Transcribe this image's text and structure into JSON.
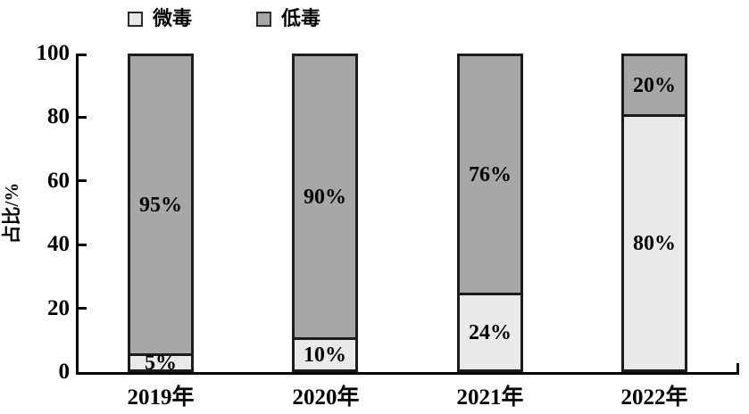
{
  "chart_data": {
    "type": "bar",
    "stacked": true,
    "title": "",
    "categories": [
      "2019年",
      "2020年",
      "2021年",
      "2022年"
    ],
    "series": [
      {
        "name": "微毒",
        "color": "#e9e9e9",
        "values": [
          5,
          10,
          24,
          80
        ],
        "labels": [
          "5%",
          "10%",
          "24%",
          "80%"
        ]
      },
      {
        "name": "低毒",
        "color": "#a7a7a7",
        "values": [
          95,
          90,
          76,
          20
        ],
        "labels": [
          "95%",
          "90%",
          "76%",
          "20%"
        ]
      }
    ],
    "xlabel": "",
    "ylabel": "占比/%",
    "ylim": [
      0,
      100
    ],
    "yticks": [
      "0",
      "20",
      "40",
      "60",
      "80",
      "100"
    ],
    "grid": false,
    "legend_position": "top"
  },
  "colors": {
    "background": "#ffffff",
    "axis": "#000000",
    "bar_border": "#1c1c1c",
    "slightly_toxic_fill": "#e9e9e9",
    "low_toxic_fill": "#a7a7a7",
    "text": "#000000"
  }
}
